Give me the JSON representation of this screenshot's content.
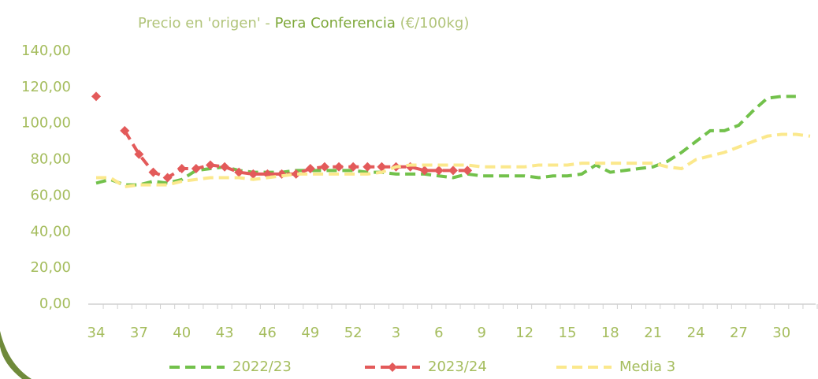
{
  "chart_data": {
    "type": "line",
    "title": [
      "Precio en 'origen' - ",
      "Pera Conferencia",
      " (€/100kg)"
    ],
    "categories": [
      34,
      null,
      null,
      37,
      null,
      null,
      40,
      null,
      null,
      43,
      null,
      null,
      46,
      null,
      null,
      49,
      null,
      null,
      52,
      null,
      null,
      3,
      null,
      null,
      6,
      null,
      null,
      9,
      null,
      null,
      12,
      null,
      null,
      15,
      null,
      null,
      18,
      null,
      null,
      21,
      null,
      null,
      24,
      null,
      null,
      27,
      null,
      null,
      30,
      null,
      null
    ],
    "ylim": [
      0,
      140
    ],
    "yticks": [
      {
        "value": 0,
        "label": "0,00"
      },
      {
        "value": 20,
        "label": "20,00"
      },
      {
        "value": 40,
        "label": "40,00"
      },
      {
        "value": 60,
        "label": "60,00"
      },
      {
        "value": 80,
        "label": "80,00"
      },
      {
        "value": 100,
        "label": "100,00"
      },
      {
        "value": 120,
        "label": "120,00"
      },
      {
        "value": 140,
        "label": "140,00"
      }
    ],
    "legend": "bottom",
    "series": [
      {
        "name": "2022/23",
        "color": "#72c14b",
        "marker": false,
        "values": [
          67,
          69,
          66,
          66,
          68,
          67,
          69,
          74,
          75,
          76,
          74,
          73,
          73,
          73,
          74,
          74,
          74,
          74,
          74,
          73,
          73,
          72,
          72,
          72,
          71,
          70,
          72,
          71,
          71,
          71,
          71,
          70,
          71,
          71,
          72,
          77,
          73,
          74,
          75,
          76,
          79,
          84,
          90,
          96,
          96,
          99,
          107,
          114,
          115,
          115,
          null
        ]
      },
      {
        "name": "2023/24",
        "color": "#e35a5a",
        "marker": true,
        "values": [
          115,
          null,
          96,
          83,
          73,
          70,
          75,
          75,
          77,
          76,
          73,
          72,
          72,
          72,
          72,
          75,
          76,
          76,
          76,
          76,
          76,
          76,
          76,
          74,
          74,
          74,
          74,
          null,
          null,
          null,
          null,
          null,
          null,
          null,
          null,
          null,
          null,
          null,
          null,
          null,
          null,
          null,
          null,
          null,
          null,
          null,
          null,
          null,
          null,
          null,
          null
        ]
      },
      {
        "name": "Media 3",
        "color": "#fbe88c",
        "marker": false,
        "values": [
          70,
          70,
          65,
          66,
          66,
          66,
          68,
          69,
          70,
          70,
          70,
          69,
          70,
          71,
          72,
          72,
          72,
          72,
          72,
          72,
          73,
          76,
          77,
          77,
          77,
          77,
          77,
          76,
          76,
          76,
          76,
          77,
          77,
          77,
          78,
          78,
          78,
          78,
          78,
          78,
          76,
          75,
          80,
          82,
          84,
          87,
          90,
          93,
          94,
          94,
          93
        ]
      }
    ]
  }
}
